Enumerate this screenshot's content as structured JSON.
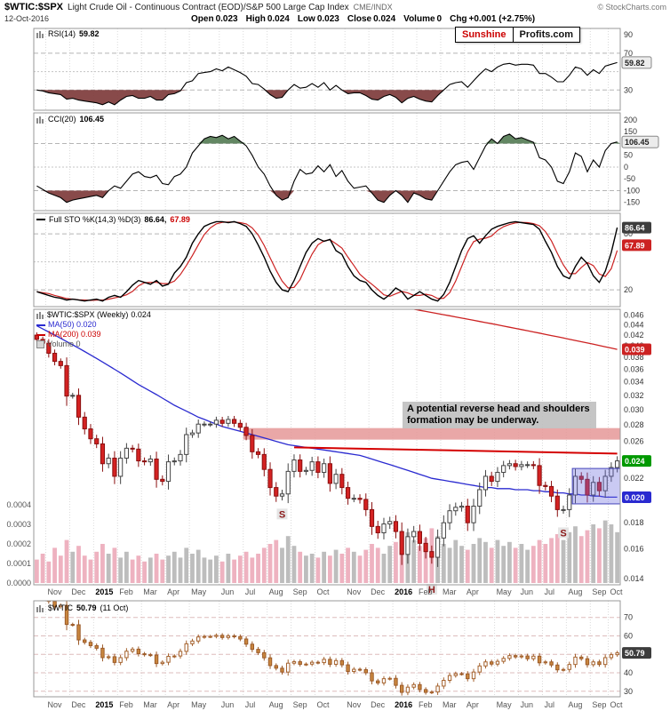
{
  "header": {
    "symbol": "$WTIC:$SPX",
    "title": "Light Crude Oil - Continuous Contract (EOD)/S&P 500 Large Cap Index",
    "exchange": "CME/INDX",
    "copyright": "© StockCharts.com",
    "date": "12-Oct-2016",
    "quote": {
      "open_label": "Open",
      "open": "0.023",
      "high_label": "High",
      "high": "0.024",
      "low_label": "Low",
      "low": "0.023",
      "close_label": "Close",
      "close": "0.024",
      "volume_label": "Volume",
      "volume": "0",
      "chg_label": "Chg",
      "chg": "+0.001 (+2.75%)"
    }
  },
  "logo": {
    "part1": "Sunshine",
    "part2": "Profits.com"
  },
  "x_axis": {
    "months": [
      {
        "label": "Nov",
        "week": 2
      },
      {
        "label": "Dec",
        "week": 6
      },
      {
        "label": "2015",
        "week": 10,
        "year": true
      },
      {
        "label": "Feb",
        "week": 14
      },
      {
        "label": "Mar",
        "week": 18
      },
      {
        "label": "Apr",
        "week": 22
      },
      {
        "label": "May",
        "week": 26
      },
      {
        "label": "Jun",
        "week": 31
      },
      {
        "label": "Jul",
        "week": 35
      },
      {
        "label": "Aug",
        "week": 39
      },
      {
        "label": "Sep",
        "week": 43
      },
      {
        "label": "Oct",
        "week": 47
      },
      {
        "label": "Nov",
        "week": 52
      },
      {
        "label": "Dec",
        "week": 56
      },
      {
        "label": "2016",
        "week": 60,
        "year": true
      },
      {
        "label": "Feb",
        "week": 64
      },
      {
        "label": "Mar",
        "week": 68
      },
      {
        "label": "Apr",
        "week": 72
      },
      {
        "label": "May",
        "week": 77
      },
      {
        "label": "Jun",
        "week": 81
      },
      {
        "label": "Jul",
        "week": 85
      },
      {
        "label": "Aug",
        "week": 89
      },
      {
        "label": "Sep",
        "week": 93
      },
      {
        "label": "Oct",
        "week": 96
      }
    ]
  },
  "chart_data": [
    {
      "type": "line",
      "label": "RSI(14)",
      "value": "59.82",
      "ylim": [
        8,
        97
      ],
      "ticks": [
        90,
        70,
        30
      ],
      "dashed_lines": [
        70,
        30
      ],
      "dotted_lines": [
        50
      ],
      "oversold_level": 30,
      "tags": [
        {
          "text": "59.82",
          "value": 59.82,
          "bg": "#ececec",
          "fg": "#222",
          "border": "#888"
        }
      ],
      "values": [
        30,
        29,
        27,
        26,
        25,
        20,
        21,
        19,
        18,
        17,
        16,
        14,
        17,
        14,
        19,
        23,
        24,
        21,
        21,
        23,
        19,
        19,
        25,
        26,
        29,
        38,
        40,
        48,
        49,
        50,
        53,
        51,
        55,
        52,
        49,
        45,
        37,
        36,
        31,
        25,
        21,
        22,
        30,
        36,
        32,
        33,
        37,
        33,
        38,
        30,
        35,
        30,
        26,
        27,
        27,
        24,
        20,
        19,
        23,
        25,
        22,
        16,
        21,
        23,
        20,
        18,
        17,
        24,
        30,
        36,
        38,
        39,
        33,
        40,
        47,
        53,
        50,
        55,
        58,
        59,
        57,
        58,
        58,
        57,
        48,
        48,
        44,
        39,
        39,
        46,
        55,
        53,
        46,
        52,
        48,
        56,
        58,
        59.82
      ]
    },
    {
      "type": "line",
      "label": "CCI(20)",
      "value": "106.45",
      "ylim": [
        -185,
        230
      ],
      "ticks": [
        200,
        150,
        100,
        50,
        0,
        -50,
        -100,
        -150
      ],
      "dashed_lines": [
        100,
        -100
      ],
      "dotted_lines": [
        0
      ],
      "overbought_level": 100,
      "oversold_level": -100,
      "tags": [
        {
          "text": "106.45",
          "value": 106.45,
          "bg": "#ececec",
          "fg": "#222",
          "border": "#888"
        }
      ],
      "values": [
        -80,
        -95,
        -110,
        -120,
        -130,
        -150,
        -140,
        -135,
        -130,
        -125,
        -120,
        -130,
        -100,
        -80,
        -90,
        -60,
        -30,
        -20,
        -40,
        -45,
        -35,
        -70,
        -75,
        -40,
        -30,
        0,
        60,
        90,
        120,
        130,
        125,
        135,
        120,
        130,
        110,
        90,
        50,
        0,
        -30,
        -80,
        -120,
        -140,
        -130,
        -60,
        -10,
        -30,
        -25,
        5,
        -20,
        10,
        -40,
        -15,
        -60,
        -90,
        -85,
        -80,
        -110,
        -140,
        -150,
        -120,
        -100,
        -120,
        -150,
        -110,
        -120,
        -135,
        -140,
        -100,
        -60,
        -20,
        10,
        20,
        25,
        -10,
        40,
        90,
        120,
        100,
        130,
        140,
        120,
        125,
        115,
        105,
        40,
        30,
        0,
        -60,
        -70,
        -20,
        60,
        45,
        -20,
        30,
        0,
        70,
        100,
        106.45
      ]
    },
    {
      "type": "line",
      "label": "Full STO %K(14,3) %D(3)",
      "k_value": "86.64,",
      "d_value": "67.89",
      "ylim": [
        2,
        102
      ],
      "ticks": [
        80,
        20
      ],
      "dashed_lines": [
        80,
        20
      ],
      "dotted_lines": [
        50
      ],
      "tags": [
        {
          "text": "86.64",
          "value": 86.64,
          "bg": "#3d3d3d",
          "fg": "#fff"
        },
        {
          "text": "67.89",
          "value": 67.89,
          "bg": "#cc2222",
          "fg": "#fff"
        }
      ],
      "k": [
        18,
        16,
        14,
        12,
        11,
        9,
        10,
        9,
        8,
        9,
        10,
        8,
        12,
        14,
        12,
        18,
        25,
        30,
        28,
        26,
        30,
        24,
        26,
        38,
        45,
        55,
        70,
        80,
        88,
        91,
        93,
        93,
        92,
        93,
        91,
        88,
        80,
        68,
        55,
        40,
        28,
        20,
        18,
        30,
        45,
        60,
        70,
        75,
        72,
        74,
        62,
        58,
        45,
        35,
        30,
        28,
        20,
        14,
        10,
        15,
        22,
        18,
        10,
        14,
        18,
        14,
        10,
        8,
        15,
        28,
        45,
        62,
        75,
        78,
        70,
        78,
        85,
        88,
        90,
        92,
        93,
        92,
        91,
        90,
        85,
        72,
        60,
        45,
        35,
        32,
        45,
        55,
        48,
        35,
        28,
        40,
        60,
        86.64
      ]
    },
    {
      "type": "candlestick",
      "label": "$WTIC:$SPX (Weekly)",
      "value": "0.024",
      "ma50_label": "MA(50) 0.020",
      "ma200_label": "MA(200) 0.039",
      "volume_label": "Volume 0",
      "scale": "log",
      "ylim": [
        0.0136,
        0.0472
      ],
      "ticks": [
        0.046,
        0.044,
        0.042,
        0.04,
        0.038,
        0.036,
        0.034,
        0.032,
        0.03,
        0.028,
        0.026,
        0.024,
        0.022,
        0.02,
        0.018,
        0.016,
        0.014
      ],
      "tags": [
        {
          "text": "0.039",
          "value": 0.0394,
          "bg": "#cc2222",
          "fg": "#fff"
        },
        {
          "text": "0.024",
          "value": 0.0238,
          "bg": "#009900",
          "fg": "#fff"
        },
        {
          "text": "0.020",
          "value": 0.0202,
          "bg": "#2a2ad0",
          "fg": "#fff"
        }
      ],
      "close": [
        0.0412,
        0.0405,
        0.0387,
        0.0373,
        0.0366,
        0.0319,
        0.032,
        0.029,
        0.0275,
        0.0263,
        0.0257,
        0.0235,
        0.0241,
        0.0222,
        0.0241,
        0.0252,
        0.0251,
        0.0238,
        0.0237,
        0.024,
        0.0219,
        0.0217,
        0.0237,
        0.0238,
        0.0245,
        0.0268,
        0.027,
        0.0281,
        0.0281,
        0.0281,
        0.0286,
        0.0282,
        0.0287,
        0.0282,
        0.0277,
        0.0267,
        0.0248,
        0.0245,
        0.0229,
        0.0211,
        0.0203,
        0.0205,
        0.0227,
        0.0239,
        0.0227,
        0.0228,
        0.0237,
        0.0226,
        0.0235,
        0.0215,
        0.0224,
        0.0211,
        0.0201,
        0.0201,
        0.02,
        0.0191,
        0.0177,
        0.0172,
        0.0179,
        0.0181,
        0.0173,
        0.0156,
        0.0169,
        0.0173,
        0.0164,
        0.0158,
        0.0154,
        0.0168,
        0.018,
        0.019,
        0.0193,
        0.0194,
        0.018,
        0.0194,
        0.0209,
        0.0222,
        0.0217,
        0.0226,
        0.0233,
        0.0235,
        0.0232,
        0.0234,
        0.0234,
        0.0233,
        0.0213,
        0.0212,
        0.0203,
        0.0191,
        0.0191,
        0.0204,
        0.0222,
        0.0219,
        0.0204,
        0.0216,
        0.0208,
        0.0222,
        0.0231,
        0.0238
      ],
      "ma50": [
        0.0438,
        0.0432,
        0.0426,
        0.042,
        0.0414,
        0.0408,
        0.0402,
        0.0396,
        0.039,
        0.0384,
        0.0378,
        0.0372,
        0.0366,
        0.036,
        0.0354,
        0.0348,
        0.0342,
        0.0336,
        0.0331,
        0.0326,
        0.0321,
        0.0316,
        0.0311,
        0.0306,
        0.0302,
        0.0298,
        0.0294,
        0.029,
        0.0287,
        0.0284,
        0.0281,
        0.0278,
        0.0276,
        0.0274,
        0.0272,
        0.027,
        0.0268,
        0.0266,
        0.0264,
        0.0262,
        0.026,
        0.0258,
        0.0256,
        0.0255,
        0.0254,
        0.0253,
        0.0252,
        0.0251,
        0.025,
        0.0249,
        0.0248,
        0.0247,
        0.0246,
        0.0245,
        0.0244,
        0.0242,
        0.024,
        0.0238,
        0.0236,
        0.0234,
        0.0232,
        0.023,
        0.0228,
        0.0226,
        0.0224,
        0.0222,
        0.022,
        0.0219,
        0.0218,
        0.0217,
        0.0216,
        0.0215,
        0.0214,
        0.0213,
        0.0212,
        0.0211,
        0.0211,
        0.021,
        0.021,
        0.021,
        0.0209,
        0.0209,
        0.0209,
        0.0208,
        0.0208,
        0.0207,
        0.0207,
        0.0206,
        0.0206,
        0.0205,
        0.0205,
        0.0204,
        0.0204,
        0.0203,
        0.0203,
        0.0202,
        0.0202,
        0.0202
      ],
      "ma200_start": 0.0617,
      "ma200_step": -0.00023,
      "volume": [
        0.00012,
        0.00015,
        0.00011,
        0.00018,
        0.00014,
        0.00022,
        0.00016,
        0.00019,
        0.00014,
        0.00012,
        0.00016,
        0.0002,
        0.00015,
        0.00018,
        0.00013,
        0.00016,
        0.00012,
        0.00014,
        0.00011,
        0.00013,
        0.00015,
        0.00012,
        0.00014,
        0.00016,
        0.00013,
        0.00018,
        0.00015,
        0.00017,
        0.00013,
        0.00012,
        0.00014,
        0.00011,
        0.00015,
        0.00012,
        0.00014,
        0.00016,
        0.00013,
        0.00015,
        0.00018,
        0.0002,
        0.00022,
        0.00018,
        0.00024,
        0.00019,
        0.00016,
        0.00014,
        0.00015,
        0.00013,
        0.00016,
        0.00014,
        0.00017,
        0.00015,
        0.00018,
        0.00016,
        0.00014,
        0.00017,
        0.0002,
        0.00018,
        0.00015,
        0.00019,
        0.00021,
        0.00024,
        0.00026,
        0.00022,
        0.00019,
        0.00023,
        0.00028,
        0.00024,
        0.0002,
        0.00018,
        0.00022,
        0.00019,
        0.00017,
        0.0002,
        0.00023,
        0.00021,
        0.00018,
        0.00022,
        0.00019,
        0.00021,
        0.00018,
        0.0002,
        0.00017,
        0.00019,
        0.00022,
        0.0002,
        0.00023,
        0.00025,
        0.00022,
        0.00026,
        0.00029,
        0.00024,
        0.00027,
        0.0003,
        0.00028,
        0.00032,
        0.0003,
        0.00026
      ],
      "volume_ticks": [
        "0.0000",
        "0.0001",
        "0.0002",
        "0.0003",
        "0.0004"
      ],
      "annotation": {
        "line1": "A potential reverse head and shoulders",
        "line2": "formation may be underway."
      },
      "markers": [
        {
          "label": "S",
          "week": 41,
          "value": 0.0185
        },
        {
          "label": "H",
          "week": 66,
          "on_axis": true
        },
        {
          "label": "S",
          "week": 88,
          "value": 0.017
        }
      ],
      "overlays": {
        "resistance_band": {
          "from_week": 35,
          "low": 0.0262,
          "high": 0.0276
        },
        "trendline": {
          "from_week": 43,
          "from_value": 0.0253,
          "to_week": 97,
          "to_value": 0.0246
        },
        "consolidation_box": {
          "from_week": 90,
          "low": 0.0196,
          "high": 0.023
        }
      }
    },
    {
      "type": "candlestick",
      "label": "$WTIC",
      "value": "50.79",
      "note": "(11 Oct)",
      "ylim": [
        27,
        79
      ],
      "ticks": [
        70,
        60,
        50,
        40,
        30
      ],
      "dashed_lines": [
        70,
        60,
        50,
        40,
        30
      ],
      "grid_color": "#ddbcbc",
      "tags": [
        {
          "text": "50.79",
          "value": 50.79,
          "bg": "#3d3d3d",
          "fg": "#fff"
        }
      ],
      "close": [
        81.0,
        80.5,
        78.7,
        75.8,
        76.5,
        66.2,
        66.0,
        57.8,
        56.5,
        54.7,
        53.3,
        48.2,
        48.7,
        45.6,
        48.2,
        51.7,
        52.8,
        50.3,
        49.8,
        49.6,
        45.0,
        45.7,
        48.9,
        49.1,
        51.6,
        55.7,
        57.2,
        59.4,
        59.7,
        59.7,
        60.3,
        59.1,
        60.0,
        59.6,
        58.3,
        55.5,
        52.7,
        50.9,
        48.1,
        43.9,
        42.5,
        40.4,
        45.2,
        46.0,
        44.6,
        44.7,
        45.7,
        45.5,
        47.3,
        44.6,
        46.6,
        44.3,
        40.7,
        41.9,
        41.7,
        40.0,
        35.6,
        34.5,
        36.8,
        37.0,
        33.2,
        29.4,
        32.2,
        33.6,
        30.9,
        29.4,
        29.6,
        32.8,
        35.9,
        38.5,
        39.5,
        39.4,
        36.8,
        40.4,
        43.7,
        45.9,
        44.7,
        46.2,
        47.8,
        49.3,
        48.6,
        49.1,
        47.6,
        49.0,
        45.4,
        45.9,
        44.2,
        41.6,
        41.8,
        44.5,
        48.5,
        47.6,
        44.4,
        45.9,
        44.5,
        48.2,
        49.8,
        50.79
      ]
    }
  ]
}
